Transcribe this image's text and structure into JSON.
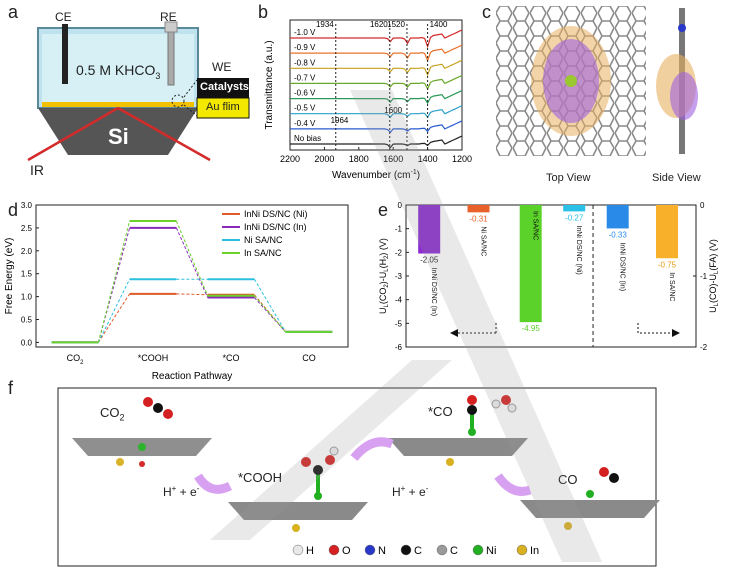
{
  "panels": {
    "a": "a",
    "b": "b",
    "c": "c",
    "d": "d",
    "e": "e",
    "f": "f"
  },
  "panel_a": {
    "ce": "CE",
    "re": "RE",
    "we": "WE",
    "electrolyte": "0.5 M KHCO",
    "electrolyte_sub": "3",
    "catalysts": "Catalysts",
    "au_film": "Au flim",
    "si": "Si",
    "ir": "IR"
  },
  "panel_c": {
    "top_view": "Top View",
    "side_view": "Side View"
  },
  "panel_f": {
    "co2": "CO",
    "co2_sub": "2",
    "cooh": "*COOH",
    "co_ads": "*CO",
    "co": "CO",
    "step1": "H",
    "step2": "H",
    "legend": [
      {
        "label": "H",
        "color": "#e8e8e8"
      },
      {
        "label": "O",
        "color": "#d42020"
      },
      {
        "label": "N",
        "color": "#2838c8"
      },
      {
        "label": "C",
        "color": "#111111"
      },
      {
        "label": "C",
        "color": "#9a9a9a"
      },
      {
        "label": "Ni",
        "color": "#22b022"
      },
      {
        "label": "In",
        "color": "#d8b020"
      }
    ]
  },
  "chart_data": [
    {
      "id": "b",
      "type": "line",
      "xlabel": "Wavenumber (cm",
      "xlabel_sup": "-1",
      "ylabel": "Transmittance (a.u.)",
      "xlim": [
        2200,
        1200
      ],
      "x_ticks": [
        2200,
        2000,
        1800,
        1600,
        1400,
        1200
      ],
      "annotations": [
        "1934",
        "1620",
        "1520",
        "1400",
        "1600",
        "1964"
      ],
      "annotation_x": [
        1934,
        1620,
        1520,
        1400,
        1600,
        1964
      ],
      "series": [
        {
          "name": "-1.0 V",
          "color": "#d42a2a"
        },
        {
          "name": "-0.9 V",
          "color": "#e8702a"
        },
        {
          "name": "-0.8 V",
          "color": "#c8a020"
        },
        {
          "name": "-0.7 V",
          "color": "#6aa82a"
        },
        {
          "name": "-0.6 V",
          "color": "#2a9a5a"
        },
        {
          "name": "-0.5 V",
          "color": "#2aa0c8"
        },
        {
          "name": "-0.4 V",
          "color": "#2a5ad0"
        },
        {
          "name": "No bias",
          "color": "#222222"
        }
      ]
    },
    {
      "id": "d",
      "type": "line",
      "ylabel": "Free Energy (eV)",
      "xlabel": "Reaction Pathway",
      "ylim": [
        -0.1,
        3.0
      ],
      "y_ticks": [
        "0.0",
        "0.5",
        "1.0",
        "1.5",
        "2.0",
        "2.5",
        "3.0"
      ],
      "categories": [
        "CO2",
        "*COOH",
        "*CO",
        "CO"
      ],
      "series": [
        {
          "name": "InNi DS/NC (Ni)",
          "color": "#e05a2a",
          "values": [
            0,
            1.06,
            1.04,
            0.23
          ]
        },
        {
          "name": "InNi DS/NC (In)",
          "color": "#8a2ab8",
          "values": [
            0,
            2.5,
            0.98,
            0.23
          ]
        },
        {
          "name": "Ni SA/NC",
          "color": "#2ac0e0",
          "values": [
            0,
            1.38,
            1.38,
            0.23
          ]
        },
        {
          "name": "In SA/NC",
          "color": "#6ad22a",
          "values": [
            0,
            2.65,
            1.02,
            0.23
          ]
        }
      ]
    },
    {
      "id": "e",
      "type": "bar",
      "ylabel_left": "U",
      "ylabel_right": "U",
      "ylim_left": [
        -6,
        0
      ],
      "y_ticks_left": [
        "0",
        "-1",
        "-2",
        "-3",
        "-4",
        "-5",
        "-6"
      ],
      "ylim_right": [
        -2,
        0
      ],
      "y_ticks_right": [
        "0",
        "-1",
        "-2"
      ],
      "categories": [
        "InNi DS/NC (In)",
        "Ni SA/NC",
        "In SA/NC",
        "InNi DS/NC (Ni)",
        "InNi DS/NC (In)",
        "In SA/NC"
      ],
      "values": [
        -2.05,
        -0.31,
        -4.95,
        -0.27,
        -0.33,
        -0.75
      ],
      "value_labels": [
        "-2.05",
        "-0.31",
        "-4.95",
        "-0.27",
        "-0.33",
        "-0.75"
      ],
      "colors": [
        "#8a2ad0",
        "#e8602a",
        "#5ad22a",
        "#2ac0e8",
        "#2a8ae8",
        "#f8b02a"
      ],
      "axis": [
        "left",
        "left",
        "left",
        "left",
        "right",
        "right"
      ]
    }
  ]
}
